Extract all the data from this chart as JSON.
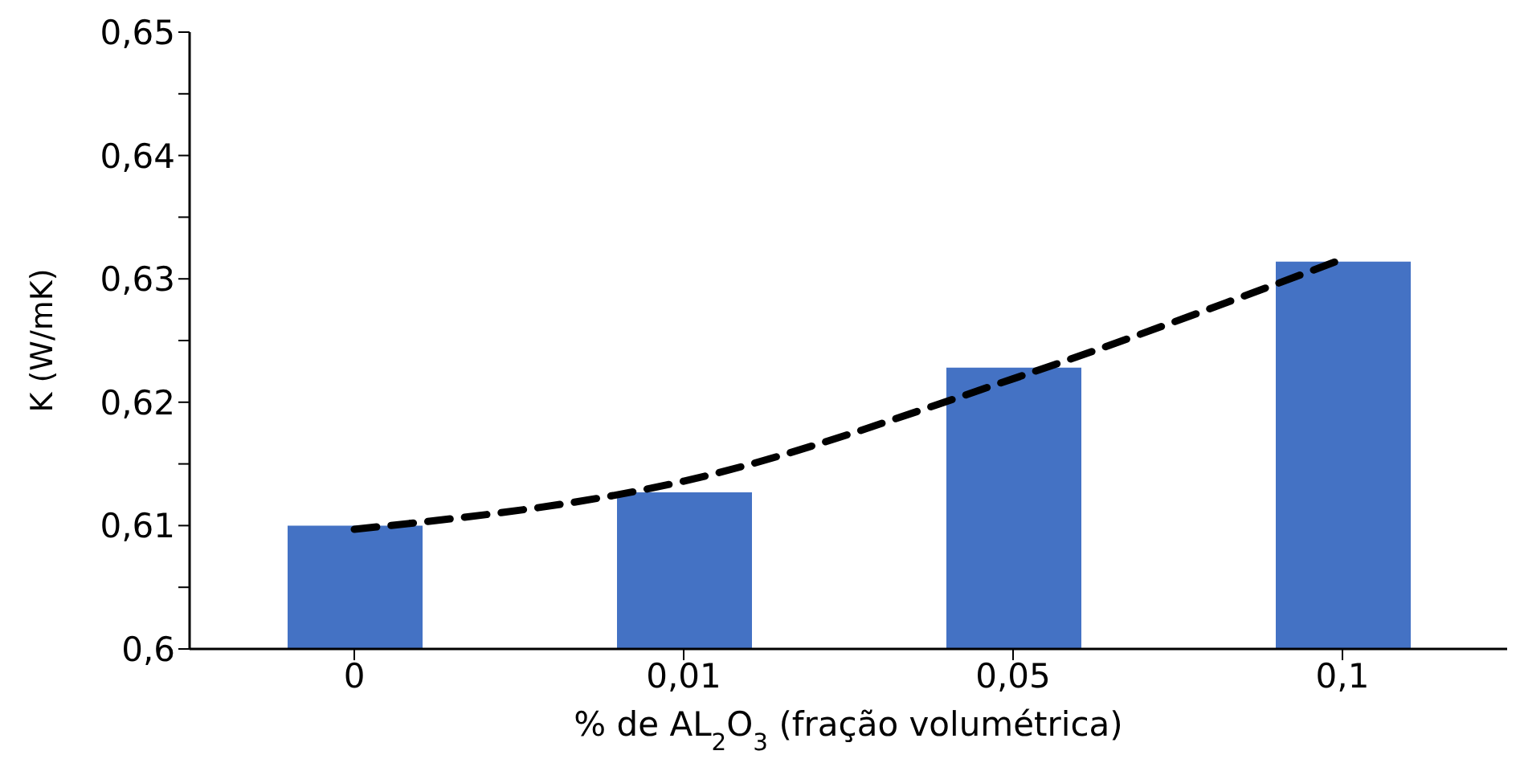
{
  "chart_data": {
    "type": "bar",
    "xlabel": "% de AL$_{2}$O$_{3}$ (fração volumétrica)",
    "ylabel": "K (W/mK)",
    "categories": [
      "0",
      "0,01",
      "0,05",
      "0,1"
    ],
    "series": [
      {
        "color": "#4472c4",
        "values": [
          0.61,
          0.6127,
          0.6228,
          0.6314
        ]
      },
      {
        "type": "line",
        "color": "#000000",
        "line_style": "dashed",
        "marker": "none",
        "values": [
          0.6097,
          0.6136,
          0.6219,
          0.6316
        ]
      }
    ],
    "ylim": [
      0.6,
      0.65
    ],
    "yticks": [
      {
        "value": 0.6,
        "label": "0,6"
      },
      {
        "value": 0.605,
        "label": null
      },
      {
        "value": 0.61,
        "label": "0,61"
      },
      {
        "value": 0.615,
        "label": null
      },
      {
        "value": 0.62,
        "label": "0,62"
      },
      {
        "value": 0.625,
        "label": null
      },
      {
        "value": 0.63,
        "label": "0,63"
      },
      {
        "value": 0.635,
        "label": null
      },
      {
        "value": 0.64,
        "label": "0,64"
      },
      {
        "value": 0.645,
        "label": null
      },
      {
        "value": 0.65,
        "label": "0,65"
      }
    ],
    "grid": false,
    "legend": false
  }
}
